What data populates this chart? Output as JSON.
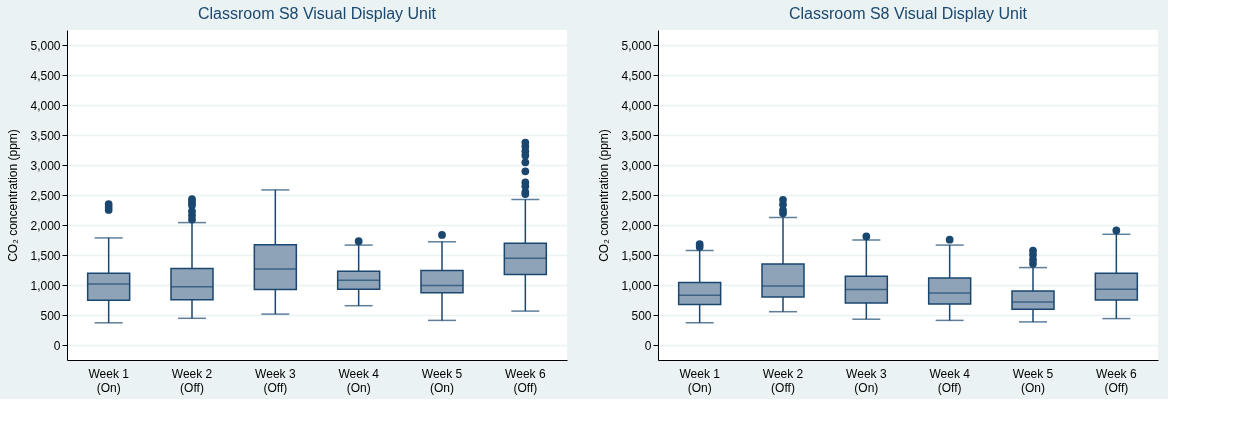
{
  "chart_data": [
    {
      "type": "box",
      "title": "Classroom S8 Visual Display Unit",
      "ylabel": "CO₂ concentration (ppm)",
      "color": "#8fa3b8",
      "categories": [
        "Week 1 (On)",
        "Week 2 (Off)",
        "Week 3 (Off)",
        "Week 4 (On)",
        "Week 5 (On)",
        "Week 6 (Off)"
      ],
      "boxes": [
        {
          "low": 370,
          "q1": 745,
          "median": 1015,
          "q3": 1195,
          "high": 1785,
          "outliers": [
            2250,
            2300,
            2350
          ]
        },
        {
          "low": 445,
          "q1": 755,
          "median": 970,
          "q3": 1275,
          "high": 2040,
          "outliers": [
            2090,
            2160,
            2230,
            2330,
            2380,
            2430
          ]
        },
        {
          "low": 515,
          "q1": 925,
          "median": 1265,
          "q3": 1670,
          "high": 2585
        },
        {
          "low": 655,
          "q1": 930,
          "median": 1080,
          "q3": 1230,
          "high": 1665,
          "outliers": [
            1730
          ]
        },
        {
          "low": 410,
          "q1": 870,
          "median": 990,
          "q3": 1240,
          "high": 1720,
          "outliers": [
            1835
          ]
        },
        {
          "low": 565,
          "q1": 1175,
          "median": 1445,
          "q3": 1695,
          "high": 2425,
          "outliers": [
            2515,
            2550,
            2645,
            2710,
            2895,
            3045,
            3160,
            3230,
            3310,
            3375
          ]
        }
      ],
      "ylim": [
        -250,
        5250
      ],
      "yticks": [
        {
          "value": 0,
          "label": "0"
        },
        {
          "value": 500,
          "label": "500"
        },
        {
          "value": 1000,
          "label": "1,000"
        },
        {
          "value": 1500,
          "label": "1,500"
        },
        {
          "value": 2000,
          "label": "2,000"
        },
        {
          "value": 2500,
          "label": "2,500"
        },
        {
          "value": 3000,
          "label": "3,000"
        },
        {
          "value": 3500,
          "label": "3,500"
        },
        {
          "value": 4000,
          "label": "4,000"
        },
        {
          "value": 4500,
          "label": "4,500"
        },
        {
          "value": 5000,
          "label": "5,000"
        }
      ],
      "grid": "y"
    },
    {
      "type": "box",
      "title": "Classroom S8 Visual Display Unit",
      "ylabel": "CO₂ concentration (ppm)",
      "color": "#8fa3b8",
      "categories": [
        "Week 1 (On)",
        "Week 2 (Off)",
        "Week 3 (On)",
        "Week 4 (Off)",
        "Week 5 (On)",
        "Week 6 (Off)"
      ],
      "boxes": [
        {
          "low": 370,
          "q1": 675,
          "median": 830,
          "q3": 1040,
          "high": 1575,
          "outliers": [
            1635,
            1680
          ]
        },
        {
          "low": 555,
          "q1": 800,
          "median": 985,
          "q3": 1350,
          "high": 2125,
          "outliers": [
            2195,
            2250,
            2340,
            2420
          ]
        },
        {
          "low": 430,
          "q1": 700,
          "median": 925,
          "q3": 1145,
          "high": 1750,
          "outliers": [
            1810
          ]
        },
        {
          "low": 410,
          "q1": 685,
          "median": 865,
          "q3": 1115,
          "high": 1665,
          "outliers": [
            1755
          ]
        },
        {
          "low": 385,
          "q1": 595,
          "median": 715,
          "q3": 900,
          "high": 1290,
          "outliers": [
            1355,
            1425,
            1505,
            1575
          ]
        },
        {
          "low": 440,
          "q1": 750,
          "median": 930,
          "q3": 1195,
          "high": 1845,
          "outliers": [
            1910
          ]
        }
      ],
      "ylim": [
        -250,
        5250
      ],
      "yticks": [
        {
          "value": 0,
          "label": "0"
        },
        {
          "value": 500,
          "label": "500"
        },
        {
          "value": 1000,
          "label": "1,000"
        },
        {
          "value": 1500,
          "label": "1,500"
        },
        {
          "value": 2000,
          "label": "2,000"
        },
        {
          "value": 2500,
          "label": "2,500"
        },
        {
          "value": 3000,
          "label": "3,000"
        },
        {
          "value": 3500,
          "label": "3,500"
        },
        {
          "value": 4000,
          "label": "4,000"
        },
        {
          "value": 4500,
          "label": "4,500"
        },
        {
          "value": 5000,
          "label": "5,000"
        }
      ],
      "grid": "y"
    }
  ]
}
